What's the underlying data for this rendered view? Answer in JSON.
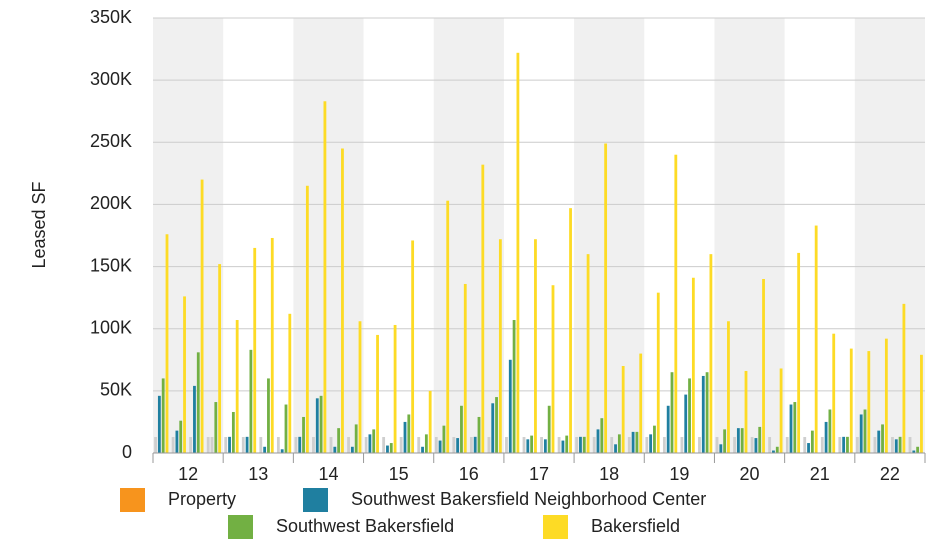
{
  "chart_data": {
    "type": "bar",
    "y_label": "Leased SF",
    "groups": [
      "12",
      "13",
      "14",
      "15",
      "16",
      "17",
      "18",
      "19",
      "20",
      "21",
      "22"
    ],
    "categories": [
      null,
      null,
      null,
      null,
      null,
      null,
      null,
      null,
      null,
      null,
      null,
      null,
      null,
      null,
      null,
      null,
      null,
      null,
      null,
      null,
      null,
      null,
      null,
      null,
      null,
      null,
      null,
      null,
      null,
      null,
      null,
      null,
      null,
      null,
      null,
      null,
      null,
      null,
      null,
      null,
      null,
      null,
      null,
      null
    ],
    "series": [
      {
        "name": "Property",
        "color": "#f7941d",
        "values": [
          null,
          null,
          null,
          null,
          null,
          null,
          null,
          null,
          null,
          null,
          null,
          null,
          null,
          null,
          null,
          null,
          null,
          null,
          null,
          null,
          null,
          null,
          null,
          null,
          null,
          null,
          null,
          null,
          null,
          null,
          null,
          null,
          null,
          null,
          null,
          null,
          null,
          null,
          null,
          null,
          null,
          null,
          null,
          null
        ]
      },
      {
        "name": "Southwest Bakersfield Neighborhood Center",
        "color": "#1f7fa0",
        "values": [
          46000,
          18000,
          54000,
          null,
          13000,
          13000,
          5000,
          3000,
          13000,
          44000,
          5000,
          5000,
          15000,
          6000,
          25000,
          5000,
          10000,
          12000,
          13000,
          40000,
          75000,
          11000,
          11000,
          10000,
          13000,
          19000,
          7000,
          17000,
          15000,
          38000,
          47000,
          62000,
          7000,
          20000,
          12000,
          2000,
          39000,
          8000,
          25000,
          13000,
          31000,
          18000,
          11000,
          2000
        ]
      },
      {
        "name": "Southwest Bakersfield",
        "color": "#72b043",
        "values": [
          60000,
          26000,
          81000,
          41000,
          33000,
          83000,
          60000,
          39000,
          29000,
          46000,
          20000,
          23000,
          19000,
          8000,
          31000,
          15000,
          22000,
          38000,
          29000,
          45000,
          107000,
          14000,
          38000,
          14000,
          13000,
          28000,
          15000,
          17000,
          22000,
          65000,
          60000,
          65000,
          19000,
          20000,
          21000,
          5000,
          41000,
          18000,
          35000,
          13000,
          35000,
          23000,
          13000,
          5000
        ]
      },
      {
        "name": "Bakersfield",
        "color": "#fddb25",
        "values": [
          176000,
          126000,
          220000,
          152000,
          107000,
          165000,
          173000,
          112000,
          215000,
          283000,
          245000,
          106000,
          95000,
          103000,
          171000,
          50000,
          203000,
          136000,
          232000,
          172000,
          322000,
          172000,
          135000,
          197000,
          160000,
          249000,
          70000,
          80000,
          129000,
          240000,
          141000,
          160000,
          106000,
          66000,
          140000,
          68000,
          161000,
          183000,
          96000,
          84000,
          82000,
          92000,
          120000,
          79000
        ]
      }
    ],
    "ylim": [
      0,
      350000
    ],
    "yticks": [
      0,
      {
        "value": 50000,
        "label": "50K"
      },
      {
        "value": 100000,
        "label": "100K"
      },
      {
        "value": 150000,
        "label": "150K"
      },
      {
        "value": 200000,
        "label": "200K"
      },
      {
        "value": 250000,
        "label": "250K"
      },
      {
        "value": 300000,
        "label": "300K"
      },
      {
        "value": 350000,
        "label": "350K"
      }
    ],
    "grid": true
  }
}
